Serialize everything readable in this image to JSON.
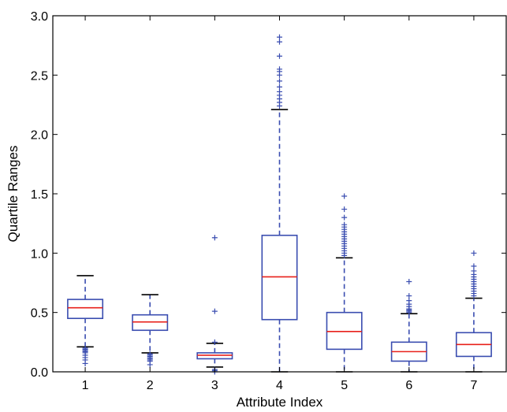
{
  "chart_data": {
    "type": "box",
    "xlabel": "Attribute Index",
    "ylabel": "Quartile Ranges",
    "ylim": [
      0,
      3.0
    ],
    "y_ticks": [
      "0.0",
      "0.5",
      "1.0",
      "1.5",
      "2.0",
      "2.5",
      "3.0"
    ],
    "categories": [
      "1",
      "2",
      "3",
      "4",
      "5",
      "6",
      "7"
    ],
    "colors": {
      "box": "#3a4db0",
      "median": "#e8201a",
      "whisker": "#3a4db0",
      "cap": "#000000",
      "outlier": "#3a4db0"
    },
    "boxes": [
      {
        "label": "1",
        "whislo": 0.21,
        "q1": 0.45,
        "med": 0.54,
        "q3": 0.61,
        "whishi": 0.81,
        "fliers": [
          0.07,
          0.1,
          0.12,
          0.14,
          0.16,
          0.17,
          0.18,
          0.19,
          0.2
        ]
      },
      {
        "label": "2",
        "whislo": 0.16,
        "q1": 0.35,
        "med": 0.42,
        "q3": 0.48,
        "whishi": 0.65,
        "fliers": [
          0.06,
          0.09,
          0.1,
          0.11,
          0.12,
          0.13,
          0.14,
          0.15
        ]
      },
      {
        "label": "3",
        "whislo": 0.04,
        "q1": 0.11,
        "med": 0.14,
        "q3": 0.16,
        "whishi": 0.24,
        "fliers": [
          0.0,
          0.01,
          0.02,
          0.25,
          0.51,
          1.13
        ]
      },
      {
        "label": "4",
        "whislo": 0.0,
        "q1": 0.44,
        "med": 0.8,
        "q3": 1.15,
        "whishi": 2.21,
        "fliers": [
          2.24,
          2.27,
          2.3,
          2.33,
          2.36,
          2.4,
          2.45,
          2.5,
          2.53,
          2.55,
          2.66,
          2.78,
          2.82
        ]
      },
      {
        "label": "5",
        "whislo": 0.0,
        "q1": 0.19,
        "med": 0.34,
        "q3": 0.5,
        "whishi": 0.96,
        "fliers": [
          0.98,
          1.0,
          1.02,
          1.04,
          1.06,
          1.08,
          1.1,
          1.12,
          1.14,
          1.16,
          1.18,
          1.2,
          1.22,
          1.24,
          1.3,
          1.37,
          1.48
        ]
      },
      {
        "label": "6",
        "whislo": 0.0,
        "q1": 0.09,
        "med": 0.17,
        "q3": 0.25,
        "whishi": 0.49,
        "fliers": [
          0.5,
          0.51,
          0.52,
          0.53,
          0.55,
          0.57,
          0.6,
          0.64,
          0.76
        ]
      },
      {
        "label": "7",
        "whislo": 0.0,
        "q1": 0.13,
        "med": 0.23,
        "q3": 0.33,
        "whishi": 0.62,
        "fliers": [
          0.64,
          0.66,
          0.68,
          0.7,
          0.72,
          0.74,
          0.76,
          0.78,
          0.8,
          0.82,
          0.85,
          0.89,
          1.0
        ]
      }
    ]
  }
}
